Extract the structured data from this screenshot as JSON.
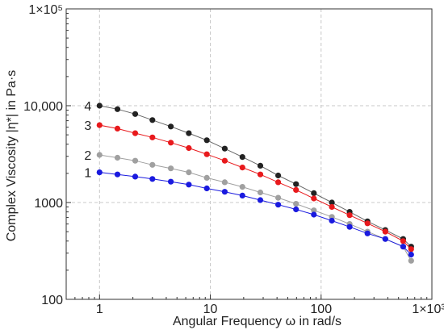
{
  "chart_data": {
    "type": "line",
    "title": "",
    "xlabel": "Angular Frequency ω in rad/s",
    "ylabel": "Complex Viscosity |η*| in Pa·s",
    "xscale": "log",
    "yscale": "log",
    "xlim": [
      0.5,
      1000
    ],
    "ylim": [
      100,
      100000
    ],
    "grid": true,
    "legend": "none",
    "x_ticks": [
      {
        "value": 1,
        "label": "1"
      },
      {
        "value": 10,
        "label": "10"
      },
      {
        "value": 100,
        "label": "100"
      },
      {
        "value": 1000,
        "label": "1×10³"
      }
    ],
    "y_ticks": [
      {
        "value": 100,
        "label": "100"
      },
      {
        "value": 1000,
        "label": "1000"
      },
      {
        "value": 10000,
        "label": "10,000"
      },
      {
        "value": 100000,
        "label": "1×10⁵"
      }
    ],
    "x": [
      1,
      1.45,
      2.1,
      3.0,
      4.4,
      6.4,
      9.3,
      13.5,
      19.5,
      28.3,
      41,
      59.4,
      86,
      125,
      181,
      262,
      380,
      550,
      650
    ],
    "series": [
      {
        "name": "",
        "label": "4",
        "color": "#222222",
        "line_color": "#666666",
        "values": [
          10000,
          9200,
          8200,
          7100,
          6100,
          5200,
          4400,
          3600,
          2950,
          2400,
          1900,
          1550,
          1250,
          1000,
          800,
          640,
          520,
          420,
          350
        ]
      },
      {
        "name": "",
        "label": "3",
        "color": "#e8191c",
        "line_color": "#e8191c",
        "values": [
          6300,
          5800,
          5200,
          4700,
          4150,
          3650,
          3150,
          2700,
          2300,
          1950,
          1620,
          1350,
          1100,
          900,
          740,
          610,
          500,
          400,
          330
        ]
      },
      {
        "name": "",
        "label": "2",
        "color": "#a0a0a0",
        "line_color": "#a0a0a0",
        "values": [
          3100,
          2900,
          2700,
          2450,
          2250,
          2050,
          1800,
          1620,
          1450,
          1270,
          1120,
          970,
          830,
          710,
          600,
          500,
          420,
          350,
          250
        ]
      },
      {
        "name": "",
        "label": "1",
        "color": "#1a1adf",
        "line_color": "#1a1adf",
        "values": [
          2050,
          1950,
          1850,
          1750,
          1640,
          1530,
          1400,
          1290,
          1180,
          1060,
          950,
          850,
          750,
          650,
          560,
          480,
          420,
          350,
          290
        ]
      }
    ]
  }
}
